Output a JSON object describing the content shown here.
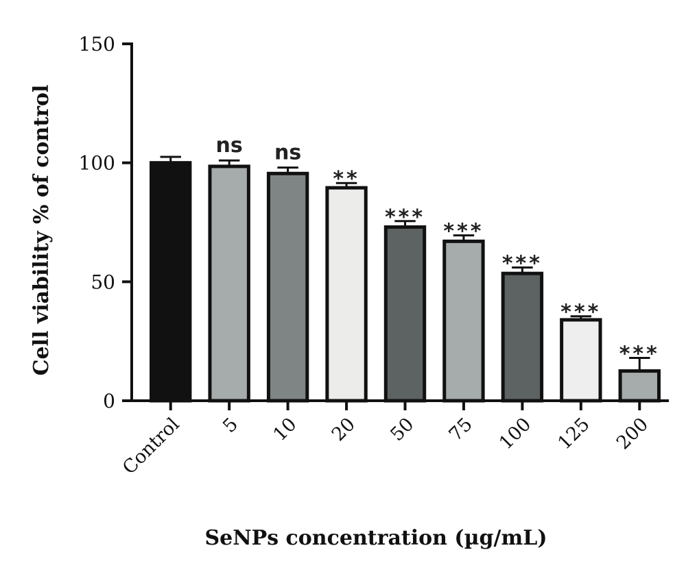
{
  "chart_data": {
    "type": "bar",
    "title": "",
    "xlabel": "SeNPs concentration (µg/mL)",
    "ylabel": "Cell viability % of control",
    "ylim": [
      0,
      150
    ],
    "yticks": [
      0,
      50,
      100,
      150
    ],
    "grid": false,
    "categories": [
      "Control",
      "5",
      "10",
      "20",
      "50",
      "75",
      "100",
      "125",
      "200"
    ],
    "values": [
      100,
      98.5,
      95.5,
      89.5,
      73,
      67,
      53.5,
      34,
      12.5
    ],
    "errors": [
      2.5,
      2.5,
      2.5,
      2,
      2.5,
      2.5,
      2.5,
      1.5,
      5.5
    ],
    "significance": [
      "",
      "ns",
      "ns",
      "**",
      "***",
      "***",
      "***",
      "***",
      "***"
    ],
    "bar_colors": [
      "#111111",
      "#a6abab",
      "#7f8584",
      "#ececea",
      "#5d6362",
      "#a6abab",
      "#5d6362",
      "#eeeeee",
      "#a6abab"
    ]
  }
}
